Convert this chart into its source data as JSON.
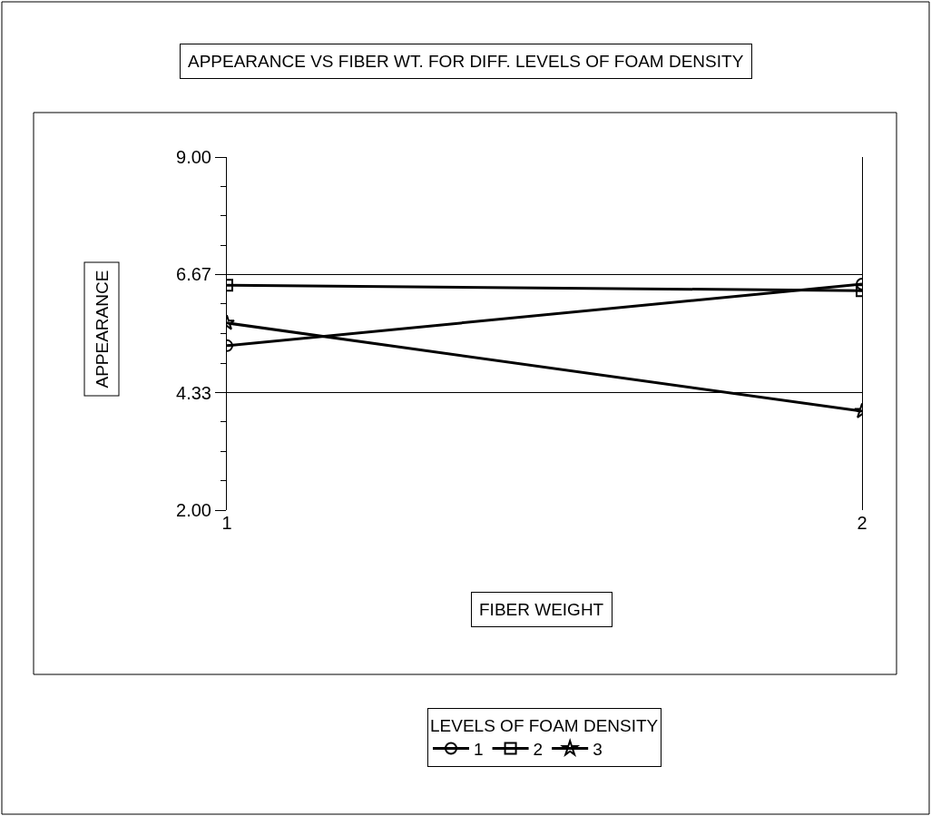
{
  "chart_data": {
    "type": "line",
    "title": "APPEARANCE VS FIBER WT. FOR DIFF. LEVELS OF FOAM DENSITY",
    "xlabel": "FIBER WEIGHT",
    "ylabel": "APPEARANCE",
    "legend_title": "LEVELS OF FOAM DENSITY",
    "x": [
      1,
      2
    ],
    "xlim": [
      1,
      2
    ],
    "xticks": [
      1,
      2
    ],
    "ylim": [
      2,
      9
    ],
    "yticks": [
      {
        "value": 2,
        "label": "2.00"
      },
      {
        "value": 4.33,
        "label": "4.33"
      },
      {
        "value": 6.67,
        "label": "6.67"
      },
      {
        "value": 9,
        "label": "9.00"
      }
    ],
    "series": [
      {
        "name": "1",
        "color": "#000000",
        "marker": "circle",
        "values": [
          5.26,
          6.48
        ]
      },
      {
        "name": "2",
        "color": "#000000",
        "marker": "square",
        "values": [
          6.46,
          6.35
        ]
      },
      {
        "name": "3",
        "color": "#000000",
        "marker": "star",
        "values": [
          5.71,
          3.96
        ]
      }
    ],
    "grid": "y",
    "legend": "bottom",
    "line_style": "solid"
  }
}
